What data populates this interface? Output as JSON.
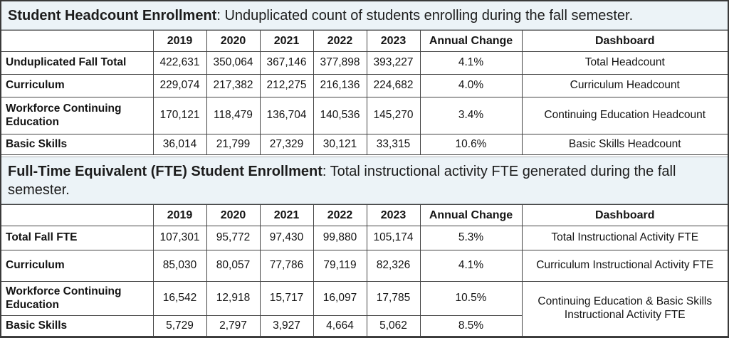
{
  "colors": {
    "band_background": "#ecf3f7",
    "cell_border": "#434343",
    "frame_border": "#3a3a3a",
    "text": "#141414"
  },
  "sections": [
    {
      "title": "Student Headcount Enrollment",
      "description": ": Unduplicated count of students enrolling during the fall semester.",
      "table": {
        "columns": [
          "",
          "2019",
          "2020",
          "2021",
          "2022",
          "2023",
          "Annual Change",
          "Dashboard"
        ],
        "rows": [
          {
            "label": "Unduplicated Fall Total",
            "values": [
              "422,631",
              "350,064",
              "367,146",
              "377,898",
              "393,227"
            ],
            "annual_change": "4.1%",
            "dashboard": "Total Headcount"
          },
          {
            "label": "Curriculum",
            "values": [
              "229,074",
              "217,382",
              "212,275",
              "216,136",
              "224,682"
            ],
            "annual_change": "4.0%",
            "dashboard": "Curriculum Headcount"
          },
          {
            "label": "Workforce Continuing Education",
            "values": [
              "170,121",
              "118,479",
              "136,704",
              "140,536",
              "145,270"
            ],
            "annual_change": "3.4%",
            "dashboard": "Continuing Education Headcount"
          },
          {
            "label": "Basic Skills",
            "values": [
              "36,014",
              "21,799",
              "27,329",
              "30,121",
              "33,315"
            ],
            "annual_change": "10.6%",
            "dashboard": "Basic Skills Headcount"
          }
        ]
      }
    },
    {
      "title": "Full-Time Equivalent (FTE) Student Enrollment",
      "description": ": Total instructional activity FTE generated during the fall semester.",
      "table": {
        "columns": [
          "",
          "2019",
          "2020",
          "2021",
          "2022",
          "2023",
          "Annual Change",
          "Dashboard"
        ],
        "rows": [
          {
            "label": "Total Fall FTE",
            "values": [
              "107,301",
              "95,772",
              "97,430",
              "99,880",
              "105,174"
            ],
            "annual_change": "5.3%",
            "dashboard": "Total Instructional Activity FTE"
          },
          {
            "label": "Curriculum",
            "values": [
              "85,030",
              "80,057",
              "77,786",
              "79,119",
              "82,326"
            ],
            "annual_change": "4.1%",
            "dashboard": "Curriculum Instructional Activity FTE"
          },
          {
            "label": "Workforce Continuing Education",
            "values": [
              "16,542",
              "12,918",
              "15,717",
              "16,097",
              "17,785"
            ],
            "annual_change": "10.5%",
            "dashboard": "Continuing Education & Basic Skills Instructional Activity FTE"
          },
          {
            "label": "Basic Skills",
            "values": [
              "5,729",
              "2,797",
              "3,927",
              "4,664",
              "5,062"
            ],
            "annual_change": "8.5%"
          }
        ]
      }
    }
  ]
}
